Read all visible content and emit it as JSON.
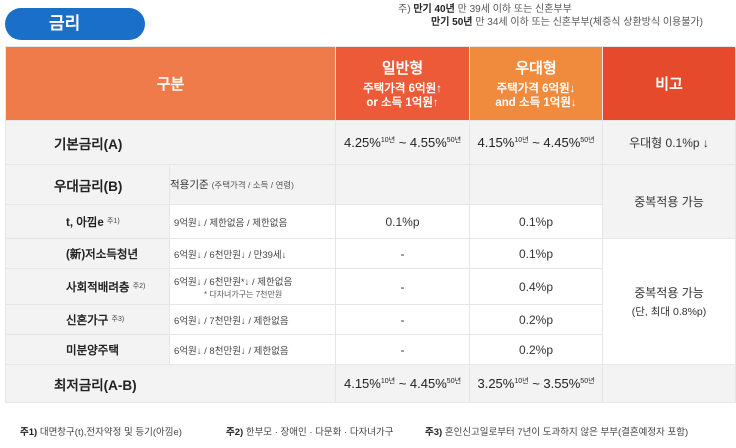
{
  "title": "금리",
  "top_notes": {
    "line1_prefix": "주)",
    "line1_bold": "만기 40년",
    "line1_rest": "만 39세 이하 또는 신혼부부",
    "line2_bold": "만기 50년",
    "line2_rest": "만 34세 이하 또는 신혼부부(체증식 상환방식 이용불가)"
  },
  "header": {
    "gubun": "구분",
    "general": {
      "title": "일반형",
      "sub1": "주택가격 6억원↑",
      "sub2": "or 소득 1억원↑"
    },
    "preferred": {
      "title": "우대형",
      "sub1": "주택가격 6억원↓",
      "sub2": "and 소득 1억원↓"
    },
    "note": "비고"
  },
  "base_rate": {
    "label": "기본금리(A)",
    "general": {
      "low": "4.25%",
      "low_sup": "10년",
      "sep": " ~ ",
      "high": "4.55%",
      "high_sup": "50년"
    },
    "preferred": {
      "low": "4.15%",
      "low_sup": "10년",
      "sep": " ~ ",
      "high": "4.45%",
      "high_sup": "50년"
    },
    "note": "우대형 0.1%p ↓"
  },
  "pref_rate": {
    "label": "우대금리(B)",
    "criteria_label": "적용기준",
    "criteria_detail": "(주택가격 / 소득 / 연령)",
    "items": [
      {
        "name": "t, 아낌e",
        "sup": "주1)",
        "criteria": "9억원↓ / 제한없음 / 제한없음",
        "criteria_note": "",
        "general": "0.1%p",
        "preferred": "0.1%p"
      },
      {
        "name": "(新)저소득청년",
        "sup": "",
        "criteria": "6억원↓ / 6천만원↓ / 만39세↓",
        "criteria_note": "",
        "general": "-",
        "preferred": "0.1%p"
      },
      {
        "name": "사회적배려층",
        "sup": "주2)",
        "criteria": "6억원↓ / 6천만원*↓ / 제한없음",
        "criteria_note": "* 다자녀가구는 7천만원",
        "general": "-",
        "preferred": "0.4%p"
      },
      {
        "name": "신혼가구",
        "sup": "주3)",
        "criteria": "6억원↓ / 7천만원↓ / 제한없음",
        "criteria_note": "",
        "general": "-",
        "preferred": "0.2%p"
      },
      {
        "name": "미분양주택",
        "sup": "",
        "criteria": "6억원↓ / 8천만원↓ / 제한없음",
        "criteria_note": "",
        "general": "-",
        "preferred": "0.2%p"
      }
    ],
    "note1": "중복적용 가능",
    "note2_line1": "중복적용 가능",
    "note2_line2": "(단, 최대 0.8%p)"
  },
  "min_rate": {
    "label": "최저금리(A-B)",
    "general": {
      "low": "4.15%",
      "low_sup": "10년",
      "sep": " ~ ",
      "high": "4.45%",
      "high_sup": "50년"
    },
    "preferred": {
      "low": "3.25%",
      "low_sup": "10년",
      "sep": " ~ ",
      "high": "3.55%",
      "high_sup": "50년"
    }
  },
  "footnotes": [
    {
      "tag": "주1)",
      "text": "대면창구(t),전자약정 및 등기(아낌e)"
    },
    {
      "tag": "주2)",
      "text": "한부모 · 장애인 · 다문화 · 다자녀가구"
    },
    {
      "tag": "주3)",
      "text": "혼인신고일로부터 7년이 도과하지 않은 부부(결혼예정자 포함)"
    }
  ],
  "colors": {
    "title_bg": "#1a6fc9",
    "header_gubun": "#f07b4a",
    "header_general": "#ec5a38",
    "header_preferred": "#f08a3c",
    "header_note": "#e54a2c",
    "row_gray": "#f3f3f3"
  }
}
